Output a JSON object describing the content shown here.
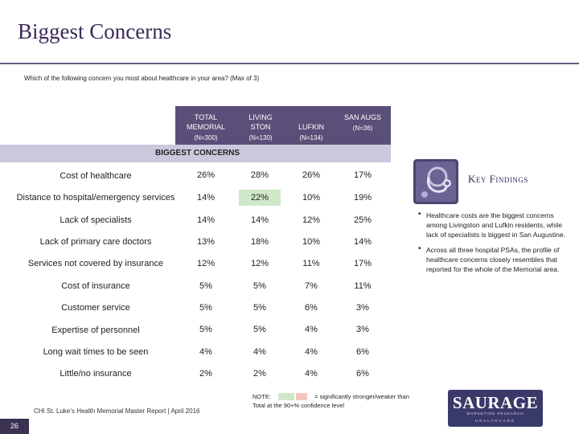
{
  "slide": {
    "title": "Biggest Concerns",
    "question": "Which of the following concern you most about healthcare in your area? (Max of 3)",
    "page_number": "26",
    "footer": "CHI St. Luke’s Health Memorial Master Report | April 2016"
  },
  "table": {
    "columns": [
      {
        "label": "TOTAL MEMORIAL",
        "n": "(N=300)"
      },
      {
        "label": "LIVING STON",
        "n": "(N=130)"
      },
      {
        "label": "LUFKIN",
        "n": "(N=134)"
      },
      {
        "label": "SAN AUGS",
        "n": "(N=36)"
      }
    ],
    "section_label": "BIGGEST CONCERNS",
    "rows": [
      {
        "label": "Cost of healthcare",
        "values": [
          "26%",
          "28%",
          "26%",
          "17%"
        ]
      },
      {
        "label": "Distance to hospital/emergency services",
        "values": [
          "14%",
          "22%",
          "10%",
          "19%"
        ]
      },
      {
        "label": "Lack of specialists",
        "values": [
          "14%",
          "14%",
          "12%",
          "25%"
        ]
      },
      {
        "label": "Lack of primary care doctors",
        "values": [
          "13%",
          "18%",
          "10%",
          "14%"
        ]
      },
      {
        "label": "Services not covered by insurance",
        "values": [
          "12%",
          "12%",
          "11%",
          "17%"
        ]
      },
      {
        "label": "Cost of insurance",
        "values": [
          "5%",
          "5%",
          "7%",
          "11%"
        ]
      },
      {
        "label": "Customer service",
        "values": [
          "5%",
          "5%",
          "6%",
          "3%"
        ]
      },
      {
        "label": "Expertise of personnel",
        "values": [
          "5%",
          "5%",
          "4%",
          "3%"
        ]
      },
      {
        "label": "Long wait times to be seen",
        "values": [
          "4%",
          "4%",
          "4%",
          "6%"
        ]
      },
      {
        "label": "Little/no insurance",
        "values": [
          "2%",
          "2%",
          "4%",
          "6%"
        ]
      }
    ],
    "highlight_color": "#cfe8c9"
  },
  "key_findings": {
    "title": "Key Findings",
    "items": [
      "Healthcare costs are the biggest concerns among Livingston and Lufkin residents, while lack of specialists is biggest in San Augustine.",
      "Across all three hospital PSAs, the profile of healthcare concerns closely resembles that reported for the whole of the Memorial area."
    ]
  },
  "note": {
    "prefix": "NOTE:",
    "text": "= significantly stronger/weaker than Total at the 90+% confidence level"
  },
  "logo": {
    "word": "SAURAGE",
    "subtitle": "MARKETING RESEARCH",
    "base": "HEALTHCARE"
  },
  "colors": {
    "brand_purple": "#5a4f78",
    "band": "#cdc7dd",
    "stronger": "#cfe8c9",
    "weaker": "#f2c6bd"
  }
}
